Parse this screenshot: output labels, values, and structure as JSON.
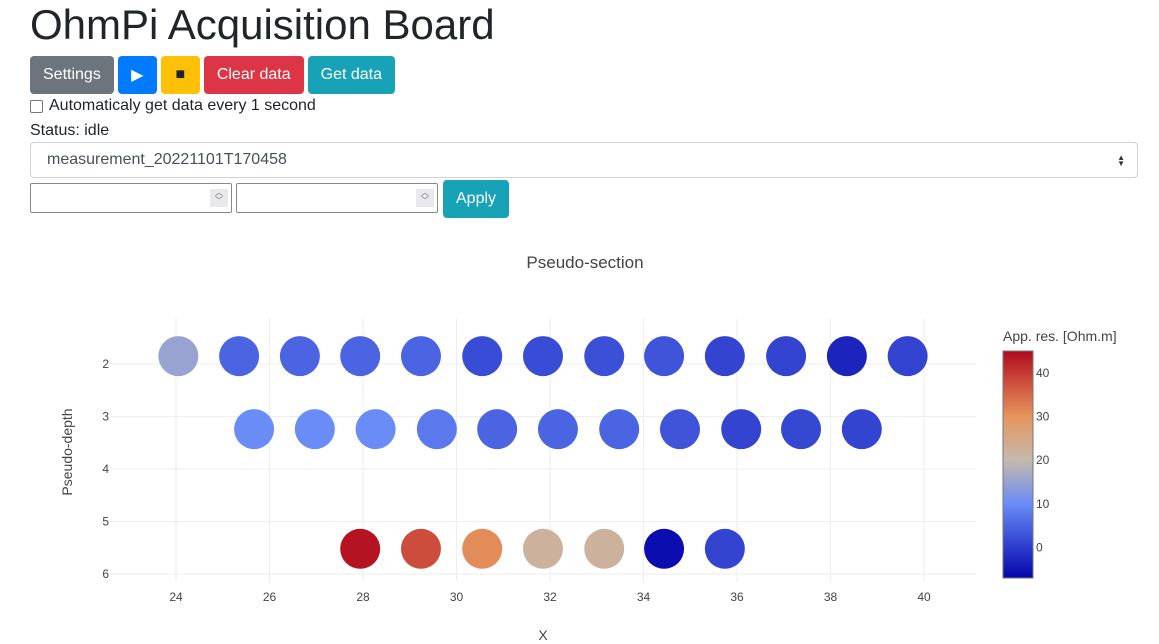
{
  "header": {
    "title": "OhmPi Acquisition Board"
  },
  "toolbar": {
    "settings_label": "Settings",
    "run_label": "▶",
    "stop_label": "■",
    "clear_label": "Clear data",
    "get_label": "Get data",
    "colors": {
      "settings": "#6c757d",
      "run": "#007bff",
      "stop": "#ffc107",
      "clear": "#dc3545",
      "get": "#17a2b8"
    }
  },
  "auto": {
    "label": "Automaticaly get data every 1 second",
    "checked": false
  },
  "status": {
    "text": "Status: idle"
  },
  "survey_select": {
    "value": "measurement_20221101T170458"
  },
  "range": {
    "min_value": "",
    "max_value": "",
    "apply_label": "Apply"
  },
  "chart_data": {
    "type": "scatter",
    "title": "Pseudo-section",
    "xlabel": "X",
    "ylabel": "Pseudo-depth",
    "xticks": [
      24,
      26,
      28,
      30,
      32,
      34,
      36,
      38,
      40
    ],
    "yticks": [
      2,
      3,
      4,
      5,
      6
    ],
    "xlim": [
      23.2,
      41.1
    ],
    "ylim": [
      6.3,
      1.1
    ],
    "colorbar": {
      "title": "App. res. [Ohm.m]",
      "ticks": [
        0,
        10,
        20,
        30,
        40
      ],
      "range": [
        -7,
        45
      ],
      "stops": [
        [
          -7,
          "#0505aa"
        ],
        [
          0,
          "#2c3ccc"
        ],
        [
          10,
          "#6a8cf7"
        ],
        [
          20,
          "#c5b9ad"
        ],
        [
          30,
          "#e6955d"
        ],
        [
          38,
          "#cc4d3c"
        ],
        [
          45,
          "#b00a1e"
        ]
      ]
    },
    "points": [
      {
        "x": 24.05,
        "y": 1.85,
        "v": 15
      },
      {
        "x": 25.35,
        "y": 1.85,
        "v": 5
      },
      {
        "x": 26.65,
        "y": 1.85,
        "v": 5
      },
      {
        "x": 27.94,
        "y": 1.85,
        "v": 5
      },
      {
        "x": 29.24,
        "y": 1.85,
        "v": 5
      },
      {
        "x": 30.55,
        "y": 1.85,
        "v": 2
      },
      {
        "x": 31.85,
        "y": 1.85,
        "v": 2
      },
      {
        "x": 33.16,
        "y": 1.85,
        "v": 2.5
      },
      {
        "x": 34.44,
        "y": 1.85,
        "v": 3
      },
      {
        "x": 35.74,
        "y": 1.85,
        "v": 1
      },
      {
        "x": 37.05,
        "y": 1.85,
        "v": 1
      },
      {
        "x": 38.35,
        "y": 1.85,
        "v": -3
      },
      {
        "x": 39.65,
        "y": 1.85,
        "v": 1
      },
      {
        "x": 25.67,
        "y": 3.24,
        "v": 10
      },
      {
        "x": 26.97,
        "y": 3.24,
        "v": 10
      },
      {
        "x": 28.27,
        "y": 3.24,
        "v": 10
      },
      {
        "x": 29.58,
        "y": 3.24,
        "v": 7.5
      },
      {
        "x": 30.87,
        "y": 3.24,
        "v": 5
      },
      {
        "x": 32.17,
        "y": 3.24,
        "v": 5
      },
      {
        "x": 33.48,
        "y": 3.24,
        "v": 5
      },
      {
        "x": 34.78,
        "y": 3.24,
        "v": 3
      },
      {
        "x": 36.09,
        "y": 3.24,
        "v": 1
      },
      {
        "x": 37.37,
        "y": 3.24,
        "v": 1.5
      },
      {
        "x": 38.67,
        "y": 3.24,
        "v": 1
      },
      {
        "x": 27.94,
        "y": 5.52,
        "v": 44
      },
      {
        "x": 29.24,
        "y": 5.52,
        "v": 38
      },
      {
        "x": 30.55,
        "y": 5.52,
        "v": 31
      },
      {
        "x": 31.85,
        "y": 5.52,
        "v": 22
      },
      {
        "x": 33.16,
        "y": 5.52,
        "v": 22
      },
      {
        "x": 34.44,
        "y": 5.52,
        "v": -6
      },
      {
        "x": 35.74,
        "y": 5.52,
        "v": 1
      }
    ]
  }
}
